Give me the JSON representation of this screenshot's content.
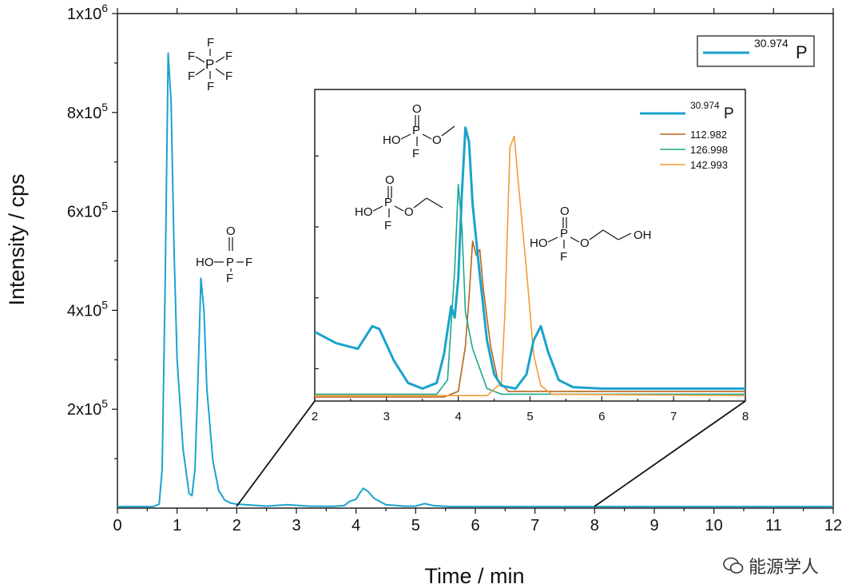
{
  "chart_data": [
    {
      "id": "main",
      "type": "line",
      "xlabel": "Time / min",
      "ylabel": "Intensity / cps",
      "xlim": [
        0,
        12
      ],
      "ylim": [
        0,
        1000000
      ],
      "x_ticks": [
        "0",
        "1",
        "2",
        "3",
        "4",
        "5",
        "6",
        "7",
        "8",
        "9",
        "10",
        "11",
        "12"
      ],
      "y_ticks": [
        {
          "mant": "2x10",
          "exp": "5",
          "value": 200000
        },
        {
          "mant": "4x10",
          "exp": "5",
          "value": 400000
        },
        {
          "mant": "6x10",
          "exp": "5",
          "value": 600000
        },
        {
          "mant": "8x10",
          "exp": "5",
          "value": 800000
        },
        {
          "mant": "1x10",
          "exp": "6",
          "value": 1000000
        }
      ],
      "legend": {
        "position": "top-right",
        "items": [
          {
            "mass": "30.974",
            "element": "P",
            "color": "#1aa3cc"
          }
        ]
      },
      "series": [
        {
          "name": "30.974P",
          "color": "#1aa3cc",
          "points": [
            [
              0,
              3000
            ],
            [
              0.6,
              3000
            ],
            [
              0.7,
              8000
            ],
            [
              0.75,
              80000
            ],
            [
              0.8,
              450000
            ],
            [
              0.85,
              920000
            ],
            [
              0.9,
              820000
            ],
            [
              0.95,
              520000
            ],
            [
              1.0,
              300000
            ],
            [
              1.1,
              120000
            ],
            [
              1.2,
              30000
            ],
            [
              1.25,
              25000
            ],
            [
              1.3,
              80000
            ],
            [
              1.35,
              260000
            ],
            [
              1.4,
              465000
            ],
            [
              1.45,
              400000
            ],
            [
              1.5,
              240000
            ],
            [
              1.6,
              95000
            ],
            [
              1.7,
              35000
            ],
            [
              1.8,
              16000
            ],
            [
              1.9,
              10000
            ],
            [
              2.0,
              8000
            ],
            [
              2.5,
              4000
            ],
            [
              2.85,
              7000
            ],
            [
              3.2,
              4000
            ],
            [
              3.6,
              3500
            ],
            [
              3.8,
              5000
            ],
            [
              3.9,
              14000
            ],
            [
              4.0,
              18000
            ],
            [
              4.05,
              28000
            ],
            [
              4.12,
              40000
            ],
            [
              4.2,
              34000
            ],
            [
              4.3,
              20000
            ],
            [
              4.5,
              7000
            ],
            [
              4.8,
              4000
            ],
            [
              5.0,
              4000
            ],
            [
              5.15,
              9000
            ],
            [
              5.3,
              5000
            ],
            [
              5.6,
              3000
            ],
            [
              12,
              3000
            ]
          ]
        }
      ],
      "annotations": [
        {
          "id": "pf6",
          "label": "F, F, F, P, F, F, F (PF6 structure)"
        },
        {
          "id": "hpo2f2",
          "label": "HO, P, O, F, F (HPO2F2 structure)"
        }
      ]
    },
    {
      "id": "inset",
      "type": "line",
      "xlim": [
        2,
        8
      ],
      "x_ticks": [
        "2",
        "3",
        "4",
        "5",
        "6",
        "7",
        "8"
      ],
      "legend": {
        "position": "top-right",
        "items": [
          {
            "label": "30.974P",
            "mass": "30.974",
            "element": "P",
            "color": "#1aa3cc"
          },
          {
            "label": "112.982",
            "color": "#b5651d"
          },
          {
            "label": "126.998",
            "color": "#1aa88a"
          },
          {
            "label": "142.993",
            "color": "#f29c38"
          }
        ]
      },
      "series": [
        {
          "name": "30.974P",
          "color": "#1aa3cc",
          "points": [
            [
              2.0,
              0.23
            ],
            [
              2.3,
              0.19
            ],
            [
              2.6,
              0.17
            ],
            [
              2.8,
              0.25
            ],
            [
              2.9,
              0.24
            ],
            [
              3.1,
              0.13
            ],
            [
              3.3,
              0.05
            ],
            [
              3.5,
              0.03
            ],
            [
              3.7,
              0.05
            ],
            [
              3.8,
              0.15
            ],
            [
              3.9,
              0.32
            ],
            [
              3.95,
              0.28
            ],
            [
              4.0,
              0.42
            ],
            [
              4.05,
              0.72
            ],
            [
              4.1,
              0.95
            ],
            [
              4.15,
              0.9
            ],
            [
              4.2,
              0.68
            ],
            [
              4.3,
              0.43
            ],
            [
              4.4,
              0.2
            ],
            [
              4.5,
              0.08
            ],
            [
              4.6,
              0.04
            ],
            [
              4.8,
              0.03
            ],
            [
              4.95,
              0.08
            ],
            [
              5.05,
              0.2
            ],
            [
              5.15,
              0.25
            ],
            [
              5.25,
              0.16
            ],
            [
              5.4,
              0.06
            ],
            [
              5.6,
              0.035
            ],
            [
              6.0,
              0.03
            ],
            [
              8.0,
              0.03
            ]
          ]
        },
        {
          "name": "112.982",
          "color": "#b5651d",
          "points": [
            [
              2.0,
              0.0
            ],
            [
              3.8,
              0.0
            ],
            [
              4.0,
              0.02
            ],
            [
              4.1,
              0.18
            ],
            [
              4.15,
              0.35
            ],
            [
              4.2,
              0.55
            ],
            [
              4.25,
              0.5
            ],
            [
              4.3,
              0.52
            ],
            [
              4.35,
              0.38
            ],
            [
              4.45,
              0.18
            ],
            [
              4.55,
              0.06
            ],
            [
              4.7,
              0.02
            ],
            [
              5.0,
              0.02
            ],
            [
              8.0,
              0.02
            ]
          ]
        },
        {
          "name": "126.998",
          "color": "#1aa88a",
          "points": [
            [
              2.0,
              0.01
            ],
            [
              3.7,
              0.01
            ],
            [
              3.85,
              0.06
            ],
            [
              3.95,
              0.45
            ],
            [
              4.0,
              0.75
            ],
            [
              4.05,
              0.6
            ],
            [
              4.1,
              0.3
            ],
            [
              4.2,
              0.17
            ],
            [
              4.3,
              0.1
            ],
            [
              4.4,
              0.03
            ],
            [
              4.6,
              0.01
            ],
            [
              8.0,
              0.01
            ]
          ]
        },
        {
          "name": "142.993",
          "color": "#f29c38",
          "points": [
            [
              2.0,
              0.005
            ],
            [
              4.4,
              0.005
            ],
            [
              4.6,
              0.05
            ],
            [
              4.65,
              0.3
            ],
            [
              4.72,
              0.88
            ],
            [
              4.78,
              0.92
            ],
            [
              4.85,
              0.72
            ],
            [
              4.95,
              0.45
            ],
            [
              5.05,
              0.15
            ],
            [
              5.15,
              0.04
            ],
            [
              5.3,
              0.01
            ],
            [
              8.0,
              0.005
            ]
          ]
        }
      ],
      "annotations": [
        {
          "id": "methyl",
          "label": "O, P, HO, O, F (methyl fluorophosphate)"
        },
        {
          "id": "ethyl",
          "label": "O, P, HO, O, F (ethyl fluorophosphate)"
        },
        {
          "id": "hydroxyethyl",
          "label": "O, P, HO, O, F, OH (hydroxyethyl fluorophosphate)"
        }
      ]
    }
  ],
  "chem": {
    "F": "F",
    "P": "P",
    "O": "O",
    "HO": "HO",
    "OH": "OH"
  },
  "watermark": {
    "text": "能源学人"
  }
}
